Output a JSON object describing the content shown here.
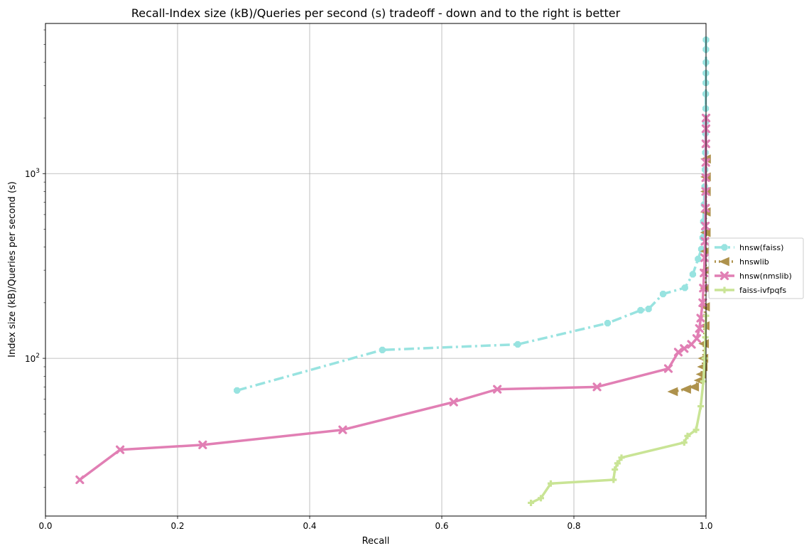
{
  "chart_data": {
    "type": "line",
    "title": "Recall-Index size (kB)/Queries per second (s) tradeoff - down and to the right is better",
    "xlabel": "Recall",
    "ylabel": "Index size (kB)/Queries per second (s)",
    "xlim": [
      0.0,
      1.0
    ],
    "ylim": [
      14,
      6500
    ],
    "yscale": "log",
    "grid": true,
    "legend_position": "right",
    "x_ticks": [
      "0.0",
      "0.2",
      "0.4",
      "0.6",
      "0.8",
      "1.0"
    ],
    "y_ticks": [
      {
        "value": 100,
        "base": "10",
        "exp": "2"
      },
      {
        "value": 1000,
        "base": "10",
        "exp": "3"
      }
    ],
    "series": [
      {
        "name": "hnsw(faiss)",
        "color": "#98e3e0",
        "dash": "dashdot",
        "marker": "octagon",
        "points": [
          [
            0.29,
            67
          ],
          [
            0.51,
            111
          ],
          [
            0.715,
            119
          ],
          [
            0.851,
            155
          ],
          [
            0.901,
            182
          ],
          [
            0.913,
            185
          ],
          [
            0.935,
            223
          ],
          [
            0.968,
            241
          ],
          [
            0.98,
            285
          ],
          [
            0.988,
            345
          ],
          [
            0.993,
            390
          ],
          [
            0.995,
            450
          ],
          [
            0.996,
            550
          ],
          [
            0.997,
            680
          ],
          [
            0.998,
            850
          ],
          [
            0.9985,
            1050
          ],
          [
            0.999,
            1300
          ],
          [
            0.9992,
            1650
          ],
          [
            0.9994,
            1900
          ],
          [
            0.9995,
            2250
          ],
          [
            0.9996,
            2700
          ],
          [
            0.9997,
            3100
          ],
          [
            0.9998,
            3500
          ],
          [
            0.9999,
            4000
          ],
          [
            0.9999,
            4700
          ],
          [
            1.0,
            5300
          ]
        ]
      },
      {
        "name": "hnswlib",
        "color": "#ae924c",
        "dash": "dotted",
        "marker": "triangle-left",
        "points": [
          [
            0.95,
            66
          ],
          [
            0.97,
            68
          ],
          [
            0.982,
            70
          ],
          [
            0.99,
            76
          ],
          [
            0.993,
            82
          ],
          [
            0.995,
            90
          ],
          [
            0.996,
            100
          ],
          [
            0.997,
            120
          ],
          [
            0.998,
            150
          ],
          [
            0.9985,
            190
          ],
          [
            0.999,
            240
          ],
          [
            0.9993,
            300
          ],
          [
            0.9995,
            380
          ],
          [
            0.9996,
            480
          ],
          [
            0.9997,
            620
          ],
          [
            0.9998,
            800
          ],
          [
            0.9999,
            960
          ],
          [
            1.0,
            1200
          ]
        ]
      },
      {
        "name": "hnsw(nmslib)",
        "color": "#e17fb4",
        "dash": "solid",
        "marker": "x",
        "points": [
          [
            0.052,
            22
          ],
          [
            0.113,
            32
          ],
          [
            0.238,
            34
          ],
          [
            0.45,
            41
          ],
          [
            0.618,
            58
          ],
          [
            0.684,
            68
          ],
          [
            0.835,
            70
          ],
          [
            0.943,
            88
          ],
          [
            0.958,
            108
          ],
          [
            0.967,
            113
          ],
          [
            0.978,
            119
          ],
          [
            0.986,
            128
          ],
          [
            0.99,
            145
          ],
          [
            0.992,
            165
          ],
          [
            0.995,
            200
          ],
          [
            0.996,
            240
          ],
          [
            0.997,
            290
          ],
          [
            0.998,
            350
          ],
          [
            0.9985,
            430
          ],
          [
            0.999,
            520
          ],
          [
            0.9993,
            650
          ],
          [
            0.9995,
            800
          ],
          [
            0.9996,
            950
          ],
          [
            0.9997,
            1150
          ],
          [
            0.9998,
            1450
          ],
          [
            0.9999,
            1750
          ],
          [
            1.0,
            2000
          ]
        ]
      },
      {
        "name": "faiss-ivfpqfs",
        "color": "#c9e495",
        "dash": "solid",
        "marker": "plus",
        "points": [
          [
            0.735,
            16.5
          ],
          [
            0.75,
            17.5
          ],
          [
            0.765,
            21
          ],
          [
            0.86,
            22
          ],
          [
            0.862,
            25
          ],
          [
            0.866,
            27
          ],
          [
            0.872,
            29
          ],
          [
            0.967,
            35
          ],
          [
            0.972,
            38
          ],
          [
            0.985,
            41
          ],
          [
            0.992,
            55
          ],
          [
            0.996,
            75
          ],
          [
            0.998,
            100
          ],
          [
            0.999,
            130
          ],
          [
            1.0,
            170
          ]
        ]
      }
    ]
  }
}
